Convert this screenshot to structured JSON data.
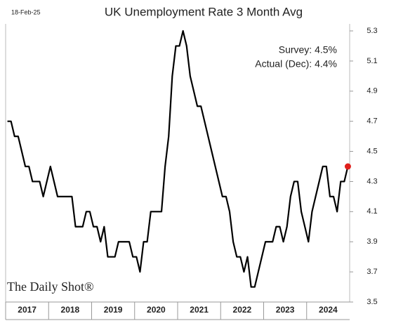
{
  "chart_data": {
    "type": "line",
    "title": "UK Unemployment Rate 3 Month Avg",
    "date": "18-Feb-25",
    "annotations": [
      "Survey:  4.5%",
      "Actual (Dec):  4.4%"
    ],
    "source": "The Daily Shot®",
    "year_labels": [
      "2017",
      "2018",
      "2019",
      "2020",
      "2021",
      "2022",
      "2023",
      "2024"
    ],
    "series": [
      {
        "name": "UK Unemployment Rate 3 Month Avg",
        "color": "#000000",
        "highlight_color": "#e0201c",
        "values": [
          4.7,
          4.7,
          4.6,
          4.6,
          4.5,
          4.4,
          4.4,
          4.3,
          4.3,
          4.3,
          4.2,
          4.3,
          4.4,
          4.3,
          4.2,
          4.2,
          4.2,
          4.2,
          4.2,
          4.0,
          4.0,
          4.0,
          4.1,
          4.1,
          4.0,
          4.0,
          3.9,
          4.0,
          3.8,
          3.8,
          3.8,
          3.9,
          3.9,
          3.9,
          3.9,
          3.8,
          3.8,
          3.7,
          3.9,
          3.9,
          4.1,
          4.1,
          4.1,
          4.1,
          4.4,
          4.6,
          5.0,
          5.2,
          5.2,
          5.3,
          5.2,
          5.0,
          4.9,
          4.8,
          4.8,
          4.7,
          4.6,
          4.5,
          4.4,
          4.3,
          4.2,
          4.2,
          4.1,
          3.9,
          3.8,
          3.8,
          3.7,
          3.8,
          3.6,
          3.6,
          3.7,
          3.8,
          3.9,
          3.9,
          3.9,
          4.0,
          4.0,
          3.9,
          4.0,
          4.2,
          4.3,
          4.3,
          4.1,
          4.0,
          3.9,
          4.1,
          4.2,
          4.3,
          4.4,
          4.4,
          4.2,
          4.2,
          4.1,
          4.3,
          4.3,
          4.4
        ]
      }
    ],
    "ylim": [
      3.5,
      5.3
    ],
    "yticks": [
      3.5,
      3.7,
      3.9,
      4.1,
      4.3,
      4.5,
      4.7,
      4.9,
      5.1,
      5.3
    ]
  }
}
